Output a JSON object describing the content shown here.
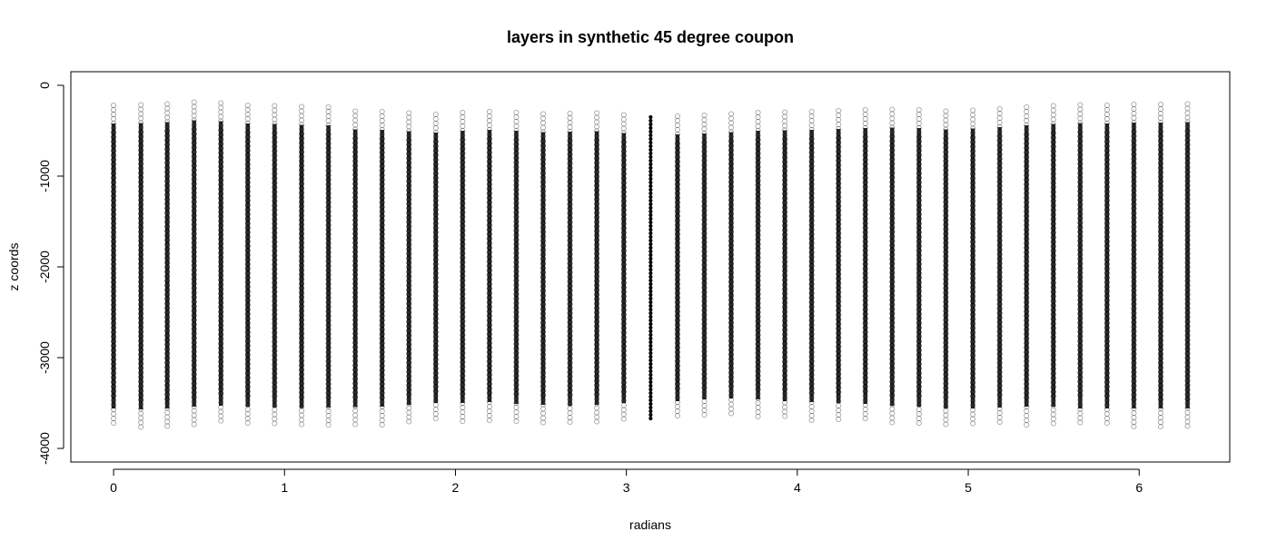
{
  "chart_data": {
    "type": "scatter",
    "title": "layers in synthetic 45 degree coupon",
    "xlabel": "radians",
    "ylabel": "z coords",
    "xlim": [
      -0.25,
      6.53
    ],
    "ylim": [
      -4150,
      150
    ],
    "xticks": [
      0,
      1,
      2,
      3,
      4,
      5,
      6
    ],
    "yticks": [
      0,
      -1000,
      -2000,
      -3000,
      -4000
    ],
    "grid": false,
    "legend": "none",
    "point_color": "#000000",
    "series": [
      {
        "x": [
          0.0,
          0.16,
          0.314,
          0.471,
          0.628,
          0.785,
          0.942,
          1.1,
          1.257,
          1.414,
          1.571,
          1.728,
          1.885,
          2.042,
          2.199,
          2.356,
          2.513,
          2.67,
          2.827,
          2.985,
          3.142,
          3.299,
          3.456,
          3.613,
          3.77,
          3.927,
          4.084,
          4.241,
          4.398,
          4.555,
          4.712,
          4.869,
          5.027,
          5.184,
          5.341,
          5.498,
          5.655,
          5.812,
          5.969,
          6.126,
          6.283
        ],
        "y_top": [
          -220,
          -215,
          -205,
          -185,
          -195,
          -220,
          -225,
          -235,
          -240,
          -285,
          -290,
          -305,
          -320,
          -300,
          -290,
          -300,
          -315,
          -310,
          -305,
          -325,
          -350,
          -340,
          -330,
          -315,
          -300,
          -295,
          -290,
          -280,
          -270,
          -265,
          -270,
          -285,
          -275,
          -260,
          -240,
          -225,
          -215,
          -220,
          -210,
          -210,
          -205
        ],
        "y_bottom": [
          -3760,
          -3770,
          -3760,
          -3740,
          -3730,
          -3740,
          -3750,
          -3755,
          -3750,
          -3745,
          -3740,
          -3720,
          -3700,
          -3700,
          -3690,
          -3710,
          -3720,
          -3730,
          -3720,
          -3700,
          -3690,
          -3680,
          -3660,
          -3650,
          -3660,
          -3680,
          -3690,
          -3700,
          -3710,
          -3730,
          -3740,
          -3760,
          -3760,
          -3750,
          -3740,
          -3740,
          -3760,
          -3760,
          -3760,
          -3760,
          -3760
        ]
      }
    ]
  }
}
